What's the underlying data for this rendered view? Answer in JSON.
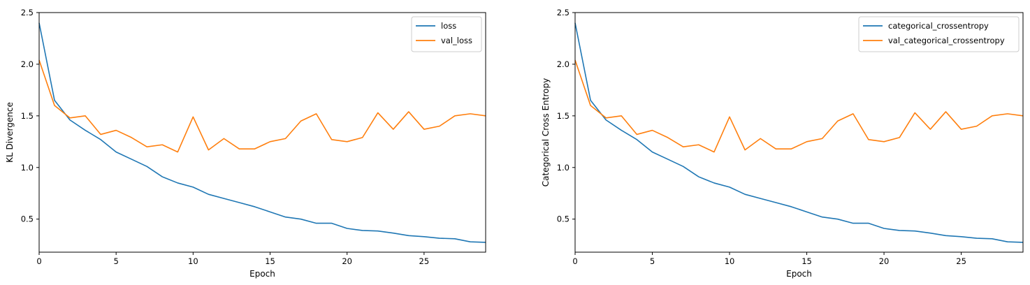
{
  "chart_data": [
    {
      "type": "line",
      "xlabel": "Epoch",
      "ylabel": "KL Divergence",
      "xlim": [
        0,
        29
      ],
      "ylim": [
        0.18,
        2.5
      ],
      "xticks": [
        "0",
        "5",
        "10",
        "15",
        "20",
        "25"
      ],
      "yticks": [
        "0.5",
        "1.0",
        "1.5",
        "2.0",
        "2.5"
      ],
      "legend_position": "upper-right",
      "x": [
        0,
        1,
        2,
        3,
        4,
        5,
        6,
        7,
        8,
        9,
        10,
        11,
        12,
        13,
        14,
        15,
        16,
        17,
        18,
        19,
        20,
        21,
        22,
        23,
        24,
        25,
        26,
        27,
        28,
        29
      ],
      "series": [
        {
          "name": "loss",
          "color": "#1f77b4",
          "values": [
            2.4,
            1.65,
            1.46,
            1.36,
            1.27,
            1.15,
            1.08,
            1.01,
            0.91,
            0.85,
            0.81,
            0.74,
            0.7,
            0.66,
            0.62,
            0.57,
            0.52,
            0.5,
            0.46,
            0.46,
            0.41,
            0.39,
            0.385,
            0.365,
            0.34,
            0.33,
            0.315,
            0.31,
            0.28,
            0.275
          ]
        },
        {
          "name": "val_loss",
          "color": "#ff7f0e",
          "values": [
            2.04,
            1.6,
            1.48,
            1.5,
            1.32,
            1.36,
            1.29,
            1.2,
            1.22,
            1.15,
            1.49,
            1.17,
            1.28,
            1.18,
            1.18,
            1.25,
            1.28,
            1.45,
            1.52,
            1.27,
            1.25,
            1.29,
            1.53,
            1.37,
            1.54,
            1.37,
            1.4,
            1.5,
            1.52,
            1.5
          ]
        }
      ]
    },
    {
      "type": "line",
      "xlabel": "Epoch",
      "ylabel": "Categorical Cross Entropy",
      "xlim": [
        0,
        29
      ],
      "ylim": [
        0.18,
        2.5
      ],
      "xticks": [
        "0",
        "5",
        "10",
        "15",
        "20",
        "25"
      ],
      "yticks": [
        "0.5",
        "1.0",
        "1.5",
        "2.0",
        "2.5"
      ],
      "legend_position": "upper-right",
      "x": [
        0,
        1,
        2,
        3,
        4,
        5,
        6,
        7,
        8,
        9,
        10,
        11,
        12,
        13,
        14,
        15,
        16,
        17,
        18,
        19,
        20,
        21,
        22,
        23,
        24,
        25,
        26,
        27,
        28,
        29
      ],
      "series": [
        {
          "name": "categorical_crossentropy",
          "color": "#1f77b4",
          "values": [
            2.4,
            1.65,
            1.46,
            1.36,
            1.27,
            1.15,
            1.08,
            1.01,
            0.91,
            0.85,
            0.81,
            0.74,
            0.7,
            0.66,
            0.62,
            0.57,
            0.52,
            0.5,
            0.46,
            0.46,
            0.41,
            0.39,
            0.385,
            0.365,
            0.34,
            0.33,
            0.315,
            0.31,
            0.28,
            0.275
          ]
        },
        {
          "name": "val_categorical_crossentropy",
          "color": "#ff7f0e",
          "values": [
            2.04,
            1.6,
            1.48,
            1.5,
            1.32,
            1.36,
            1.29,
            1.2,
            1.22,
            1.15,
            1.49,
            1.17,
            1.28,
            1.18,
            1.18,
            1.25,
            1.28,
            1.45,
            1.52,
            1.27,
            1.25,
            1.29,
            1.53,
            1.37,
            1.54,
            1.37,
            1.4,
            1.5,
            1.52,
            1.5
          ]
        }
      ]
    }
  ]
}
